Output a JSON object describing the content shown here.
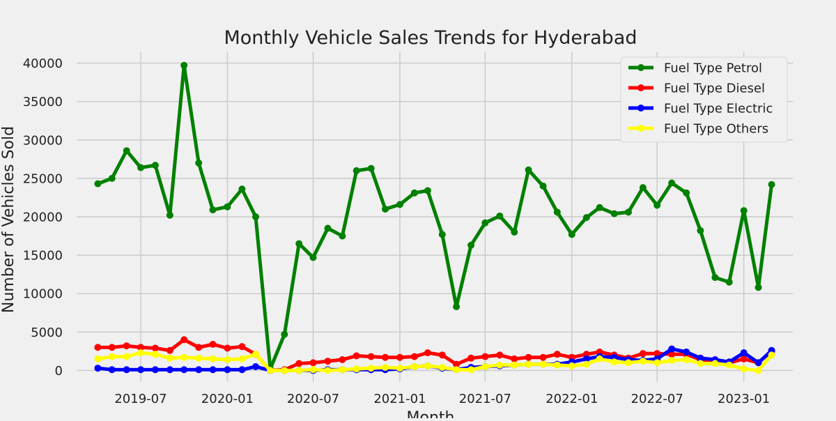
{
  "chart_data": {
    "type": "line",
    "title": "Monthly Vehicle Sales Trends for Hyderabad",
    "xlabel": "Month",
    "ylabel": "Number of Vehicles Sold",
    "x": [
      "2019-04",
      "2019-05",
      "2019-06",
      "2019-07",
      "2019-08",
      "2019-09",
      "2019-10",
      "2019-11",
      "2019-12",
      "2020-01",
      "2020-02",
      "2020-03",
      "2020-04",
      "2020-05",
      "2020-06",
      "2020-07",
      "2020-08",
      "2020-09",
      "2020-10",
      "2020-11",
      "2020-12",
      "2021-01",
      "2021-02",
      "2021-03",
      "2021-04",
      "2021-05",
      "2021-06",
      "2021-07",
      "2021-08",
      "2021-09",
      "2021-10",
      "2021-11",
      "2021-12",
      "2022-01",
      "2022-02",
      "2022-03",
      "2022-04",
      "2022-05",
      "2022-06",
      "2022-07",
      "2022-08",
      "2022-09",
      "2022-10",
      "2022-11",
      "2022-12",
      "2023-01",
      "2023-02",
      "2023-03"
    ],
    "xlim": [
      "2019-02-15",
      "2023-04-15"
    ],
    "ylim": [
      -1500,
      41500
    ],
    "x_ticks": [
      "2019-07",
      "2020-01",
      "2020-07",
      "2021-01",
      "2021-07",
      "2022-01",
      "2022-07",
      "2023-01"
    ],
    "y_ticks": [
      0,
      5000,
      10000,
      15000,
      20000,
      25000,
      30000,
      35000,
      40000
    ],
    "grid": true,
    "legend_position": "top-right",
    "series": [
      {
        "name": "Fuel Type Petrol",
        "color": "#008000",
        "values": [
          24300,
          25000,
          28600,
          26400,
          26700,
          20200,
          39700,
          27000,
          20900,
          21300,
          23600,
          20000,
          200,
          4700,
          16500,
          14700,
          18500,
          17500,
          26000,
          26300,
          21000,
          21600,
          23100,
          23400,
          17700,
          8300,
          16300,
          19200,
          20100,
          18000,
          26100,
          24000,
          20600,
          17700,
          19900,
          21200,
          20400,
          20600,
          23800,
          21500,
          24400,
          23100,
          18200,
          12100,
          11500,
          20800,
          10800,
          24200
        ]
      },
      {
        "name": "Fuel Type Diesel",
        "color": "#ff0000",
        "values": [
          3000,
          3000,
          3200,
          3000,
          2900,
          2600,
          4000,
          3000,
          3400,
          2900,
          3100,
          2100,
          0,
          100,
          900,
          1000,
          1200,
          1400,
          1900,
          1800,
          1700,
          1700,
          1800,
          2300,
          2000,
          800,
          1600,
          1800,
          2000,
          1500,
          1700,
          1700,
          2100,
          1700,
          2100,
          2400,
          2000,
          1600,
          2200,
          2200,
          2100,
          2100,
          1400,
          1200,
          1000,
          1500,
          1000,
          2500
        ]
      },
      {
        "name": "Fuel Type Electric",
        "color": "#0000ff",
        "values": [
          300,
          100,
          100,
          100,
          100,
          100,
          100,
          100,
          100,
          100,
          100,
          500,
          0,
          0,
          0,
          0,
          100,
          100,
          100,
          100,
          100,
          200,
          500,
          600,
          300,
          100,
          400,
          500,
          600,
          700,
          800,
          800,
          800,
          1100,
          1500,
          1800,
          1700,
          1400,
          1300,
          1500,
          2800,
          2400,
          1600,
          1400,
          1100,
          2300,
          1000,
          2600
        ]
      },
      {
        "name": "Fuel Type Others",
        "color": "#ffff00",
        "values": [
          1500,
          1800,
          1800,
          2300,
          2100,
          1600,
          1700,
          1600,
          1500,
          1400,
          1500,
          2100,
          0,
          0,
          0,
          100,
          0,
          100,
          200,
          300,
          400,
          300,
          500,
          600,
          400,
          100,
          100,
          500,
          700,
          700,
          800,
          800,
          700,
          600,
          800,
          1500,
          1100,
          1000,
          1200,
          1000,
          1300,
          1400,
          900,
          900,
          700,
          200,
          0,
          2000
        ]
      }
    ]
  }
}
